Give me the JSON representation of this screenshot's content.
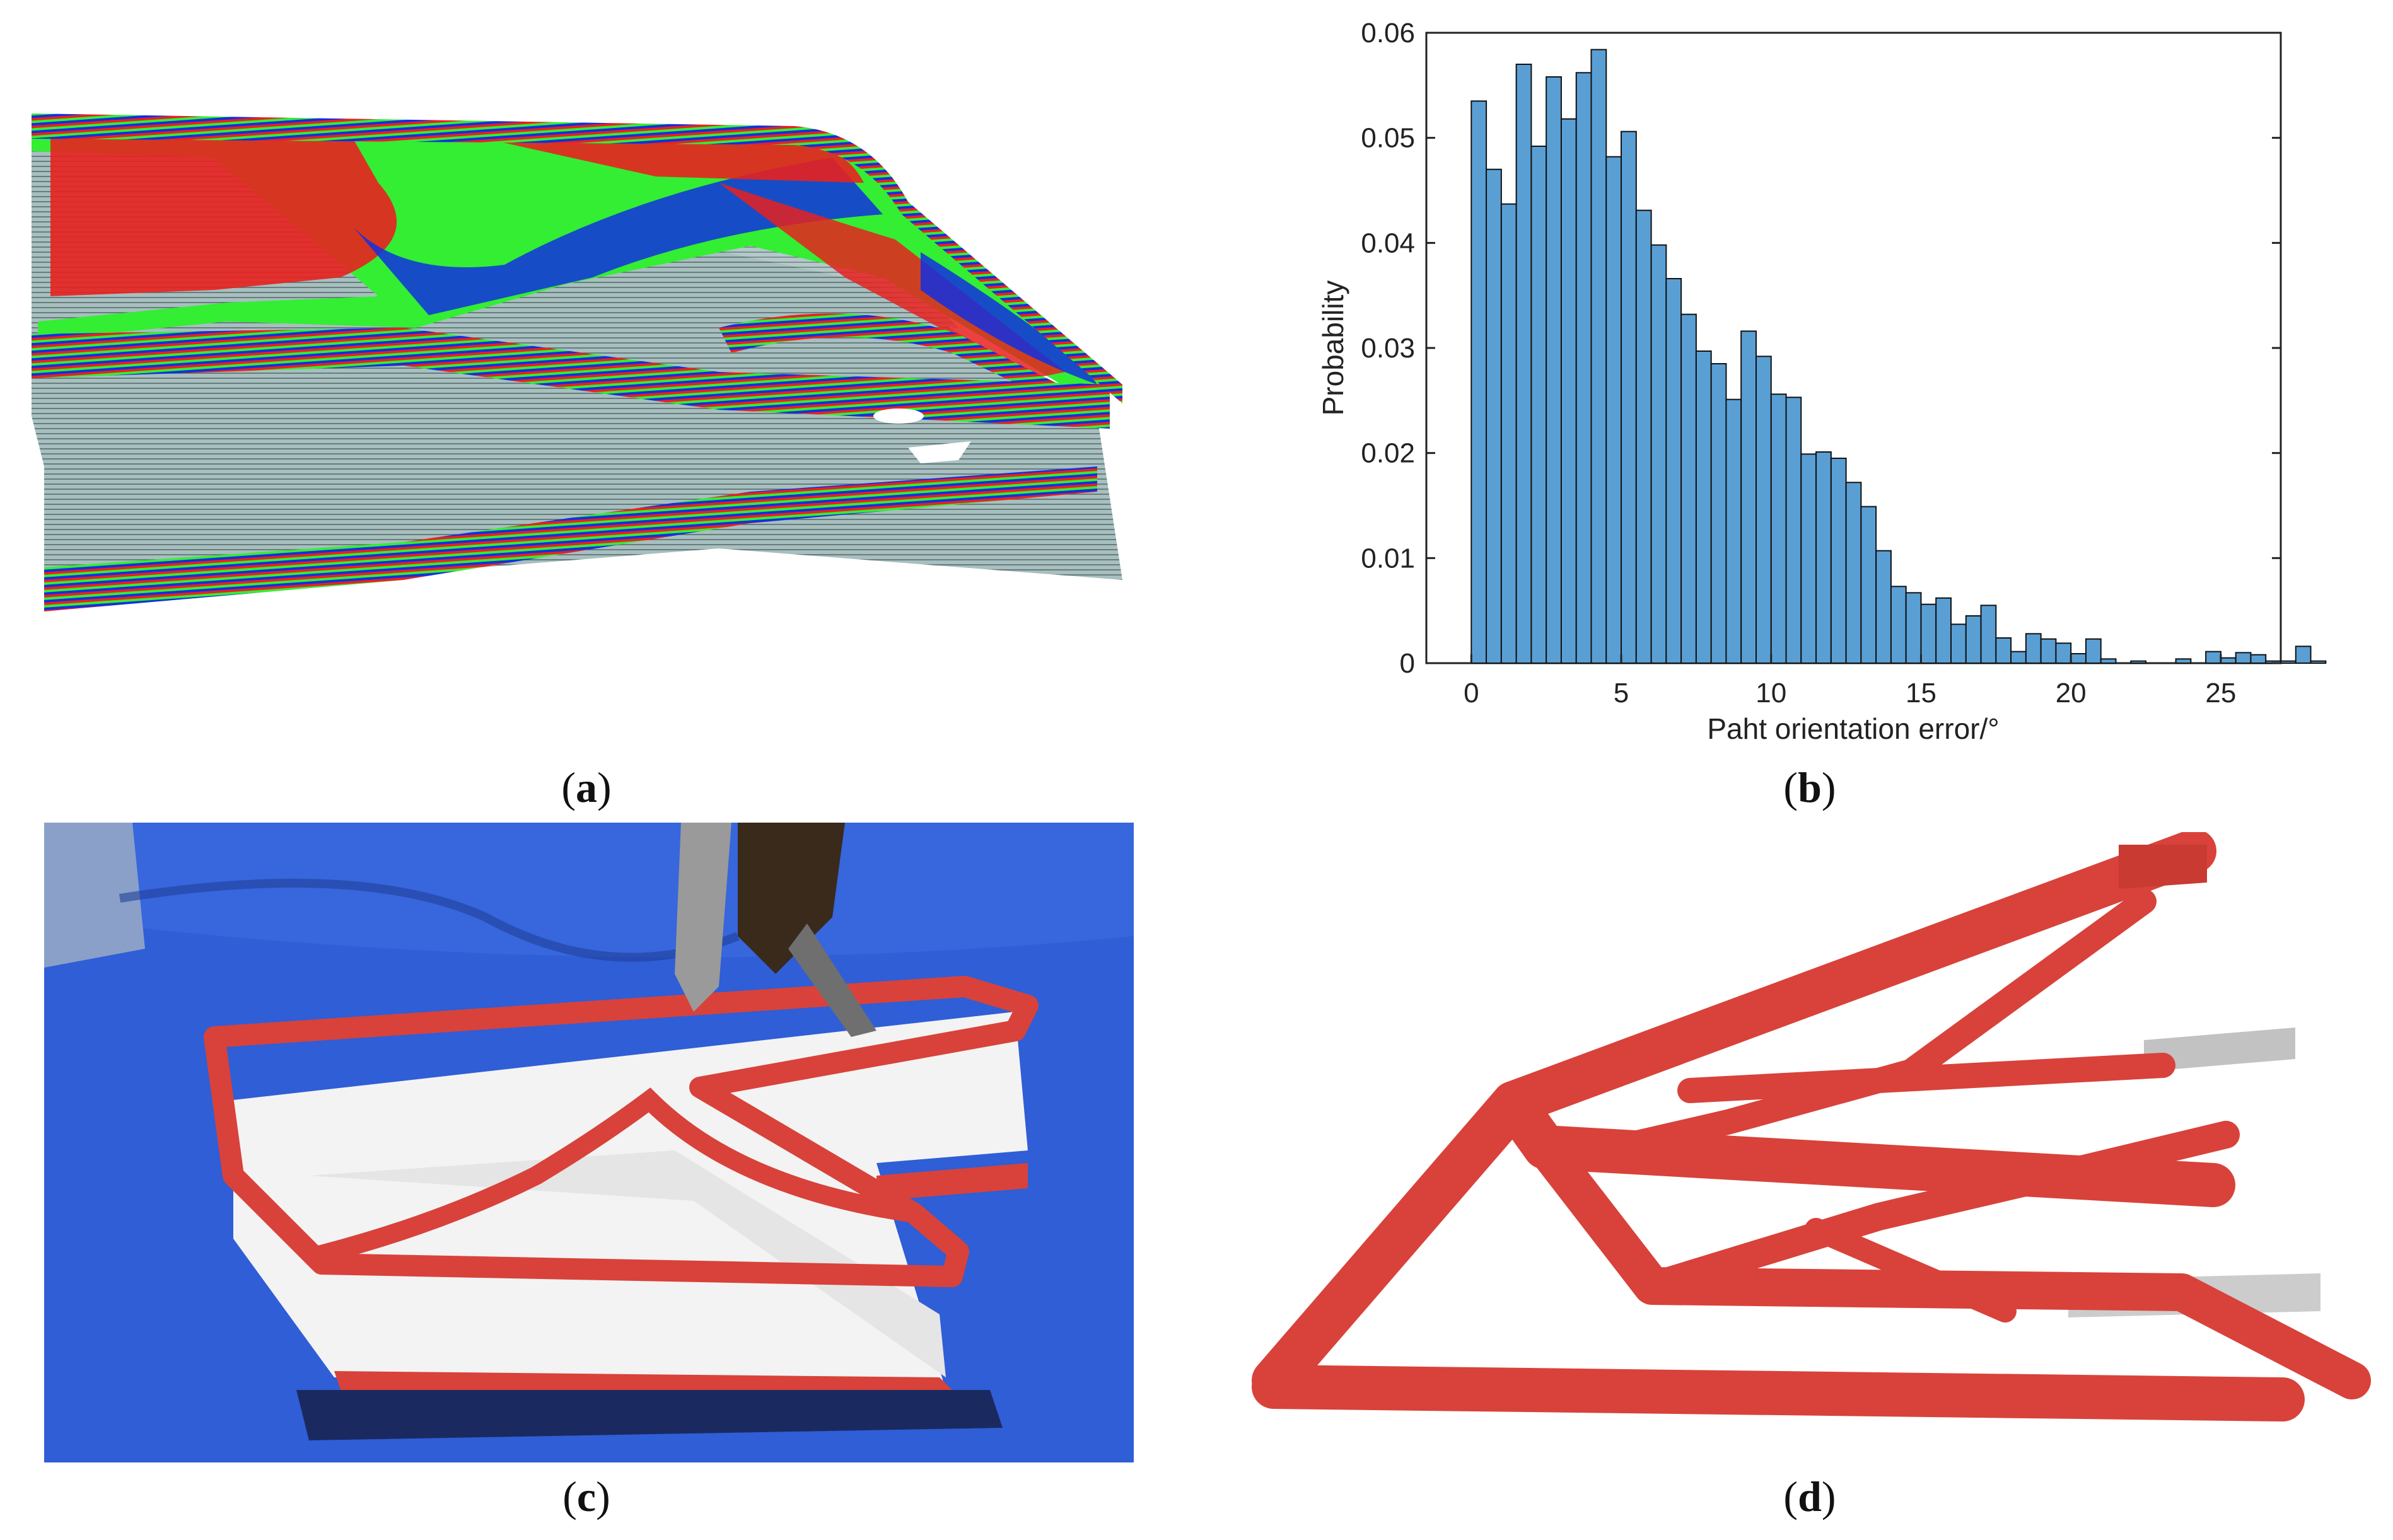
{
  "captions": {
    "a": "a",
    "b": "b",
    "c": "c",
    "d": "d"
  },
  "colors": {
    "red": "#e8211f",
    "green": "#33ee33",
    "blue": "#1230e0",
    "slate": "#9fb7b7",
    "bar": "#5a9fd4",
    "bar_edge": "#111111",
    "tape": "#2f5ed6",
    "print_red": "#d8423a",
    "white_wall": "#f4f4f4"
  },
  "chart_data": {
    "type": "bar",
    "xlabel": "Paht orientation error/°",
    "ylabel": "Probability",
    "xlim": [
      -1.5,
      27
    ],
    "ylim": [
      0,
      0.06
    ],
    "xticks": [
      "0",
      "5",
      "10",
      "15",
      "20",
      "25"
    ],
    "yticks": [
      "0",
      "0.01",
      "0.02",
      "0.03",
      "0.04",
      "0.05",
      "0.06"
    ],
    "bin_width": 0.5,
    "bin_start": 0,
    "values": [
      0.0535,
      0.047,
      0.0437,
      0.057,
      0.0492,
      0.0558,
      0.0518,
      0.0562,
      0.0584,
      0.0482,
      0.0506,
      0.0431,
      0.0398,
      0.0366,
      0.0332,
      0.0297,
      0.0285,
      0.0251,
      0.0316,
      0.0292,
      0.0256,
      0.0253,
      0.0199,
      0.0201,
      0.0195,
      0.0172,
      0.0149,
      0.0107,
      0.0073,
      0.0067,
      0.0056,
      0.0062,
      0.0037,
      0.0045,
      0.0055,
      0.0024,
      0.0011,
      0.0028,
      0.0023,
      0.0019,
      0.0009,
      0.0023,
      0.0004,
      0.0,
      0.0002,
      0.0,
      0.0,
      0.0004,
      0.0,
      0.0011,
      0.0005,
      0.001,
      0.0008,
      0.0002,
      0.0002,
      0.0016,
      0.0002,
      0.0,
      0.0,
      0.0,
      0.0,
      0.0,
      0.0,
      0.0006
    ]
  }
}
